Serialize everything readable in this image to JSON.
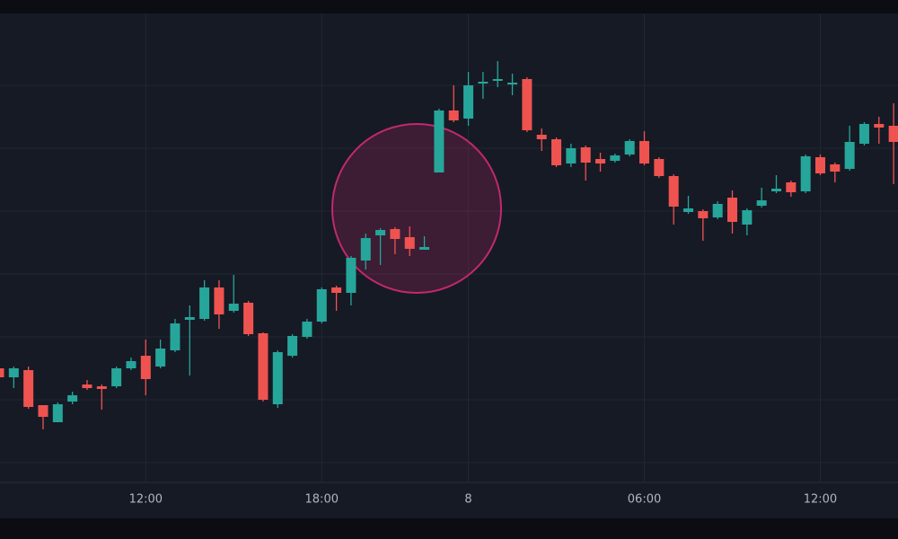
{
  "chart_data": {
    "type": "candlestick",
    "categories": [
      null,
      null,
      null,
      null,
      null,
      null,
      null,
      null,
      null,
      null,
      "12:00",
      null,
      null,
      null,
      null,
      null,
      null,
      null,
      null,
      null,
      null,
      null,
      "18:00",
      null,
      null,
      null,
      null,
      null,
      null,
      null,
      null,
      null,
      "8",
      null,
      null,
      null,
      null,
      null,
      null,
      null,
      null,
      null,
      null,
      null,
      "06:00",
      null,
      null,
      null,
      null,
      null,
      null,
      null,
      null,
      null,
      null,
      null,
      "12:00",
      null,
      null,
      null,
      null,
      null
    ],
    "open": [
      12.5,
      11.5,
      12.3,
      8.4,
      6.5,
      8.8,
      10.7,
      10.5,
      10.5,
      12.5,
      13.9,
      12.7,
      14.5,
      17.9,
      18.0,
      21.5,
      18.9,
      19.8,
      16.4,
      8.5,
      13.9,
      16.0,
      17.7,
      21.5,
      20.9,
      24.5,
      27.3,
      28.0,
      27.1,
      25.7,
      34.3,
      41.2,
      40.3,
      44.2,
      44.5,
      44.1,
      44.7,
      38.5,
      38.0,
      35.3,
      37.1,
      35.8,
      35.6,
      36.3,
      37.8,
      35.8,
      33.9,
      29.9,
      30.0,
      29.3,
      31.5,
      28.5,
      30.6,
      32.2,
      33.2,
      32.2,
      36.0,
      35.2,
      34.7,
      37.5,
      39.7,
      39.5
    ],
    "high": [
      12.7,
      12.7,
      12.7,
      8.4,
      8.7,
      9.9,
      11.2,
      10.7,
      12.7,
      13.7,
      15.7,
      15.7,
      18.0,
      19.5,
      22.3,
      22.3,
      22.9,
      20.0,
      16.5,
      14.5,
      16.3,
      18.0,
      21.5,
      21.7,
      25.0,
      27.5,
      28.1,
      28.2,
      28.3,
      27.2,
      41.4,
      44.0,
      45.5,
      45.5,
      46.7,
      45.3,
      44.9,
      39.2,
      38.2,
      37.5,
      37.3,
      36.5,
      36.4,
      38.0,
      38.9,
      36.0,
      34.1,
      31.7,
      30.2,
      31.1,
      32.3,
      30.3,
      32.6,
      34.0,
      33.4,
      36.3,
      36.3,
      35.4,
      39.5,
      39.9,
      40.5,
      42.0
    ],
    "low": [
      11.3,
      10.3,
      8.0,
      5.7,
      6.5,
      8.5,
      10.1,
      7.9,
      10.3,
      12.3,
      9.5,
      12.5,
      14.3,
      11.7,
      17.8,
      16.9,
      18.7,
      16.1,
      8.8,
      8.1,
      13.7,
      15.8,
      17.5,
      18.9,
      19.5,
      23.5,
      24.0,
      25.2,
      25.0,
      25.7,
      34.3,
      39.9,
      39.5,
      42.5,
      43.8,
      42.9,
      38.8,
      36.7,
      34.9,
      34.9,
      33.4,
      34.4,
      35.4,
      36.1,
      35.1,
      33.7,
      28.5,
      29.7,
      26.7,
      29.1,
      27.5,
      27.3,
      30.4,
      32.0,
      31.6,
      32.0,
      34.0,
      33.2,
      34.5,
      37.3,
      37.5,
      33.0
    ],
    "close": [
      11.5,
      12.5,
      8.2,
      7.1,
      8.5,
      9.5,
      10.3,
      10.2,
      12.5,
      13.3,
      11.3,
      14.7,
      17.5,
      18.2,
      21.5,
      18.5,
      19.7,
      16.3,
      9.0,
      14.3,
      16.1,
      17.7,
      21.3,
      20.9,
      24.8,
      27.0,
      27.9,
      26.9,
      25.8,
      26.0,
      41.2,
      40.1,
      44.0,
      44.4,
      44.7,
      44.3,
      39.0,
      38.0,
      35.1,
      37.0,
      35.4,
      35.3,
      36.2,
      37.8,
      35.3,
      33.9,
      30.5,
      30.3,
      29.2,
      30.8,
      28.8,
      30.1,
      31.2,
      32.5,
      32.1,
      36.1,
      34.2,
      34.4,
      37.7,
      39.7,
      39.3,
      37.7
    ],
    "up_color": "#26a69a",
    "down_color": "#ef5350",
    "ylim": [
      0,
      52
    ],
    "ygrid": [
      2,
      9,
      16,
      23,
      30,
      37,
      44
    ],
    "grid": true
  }
}
